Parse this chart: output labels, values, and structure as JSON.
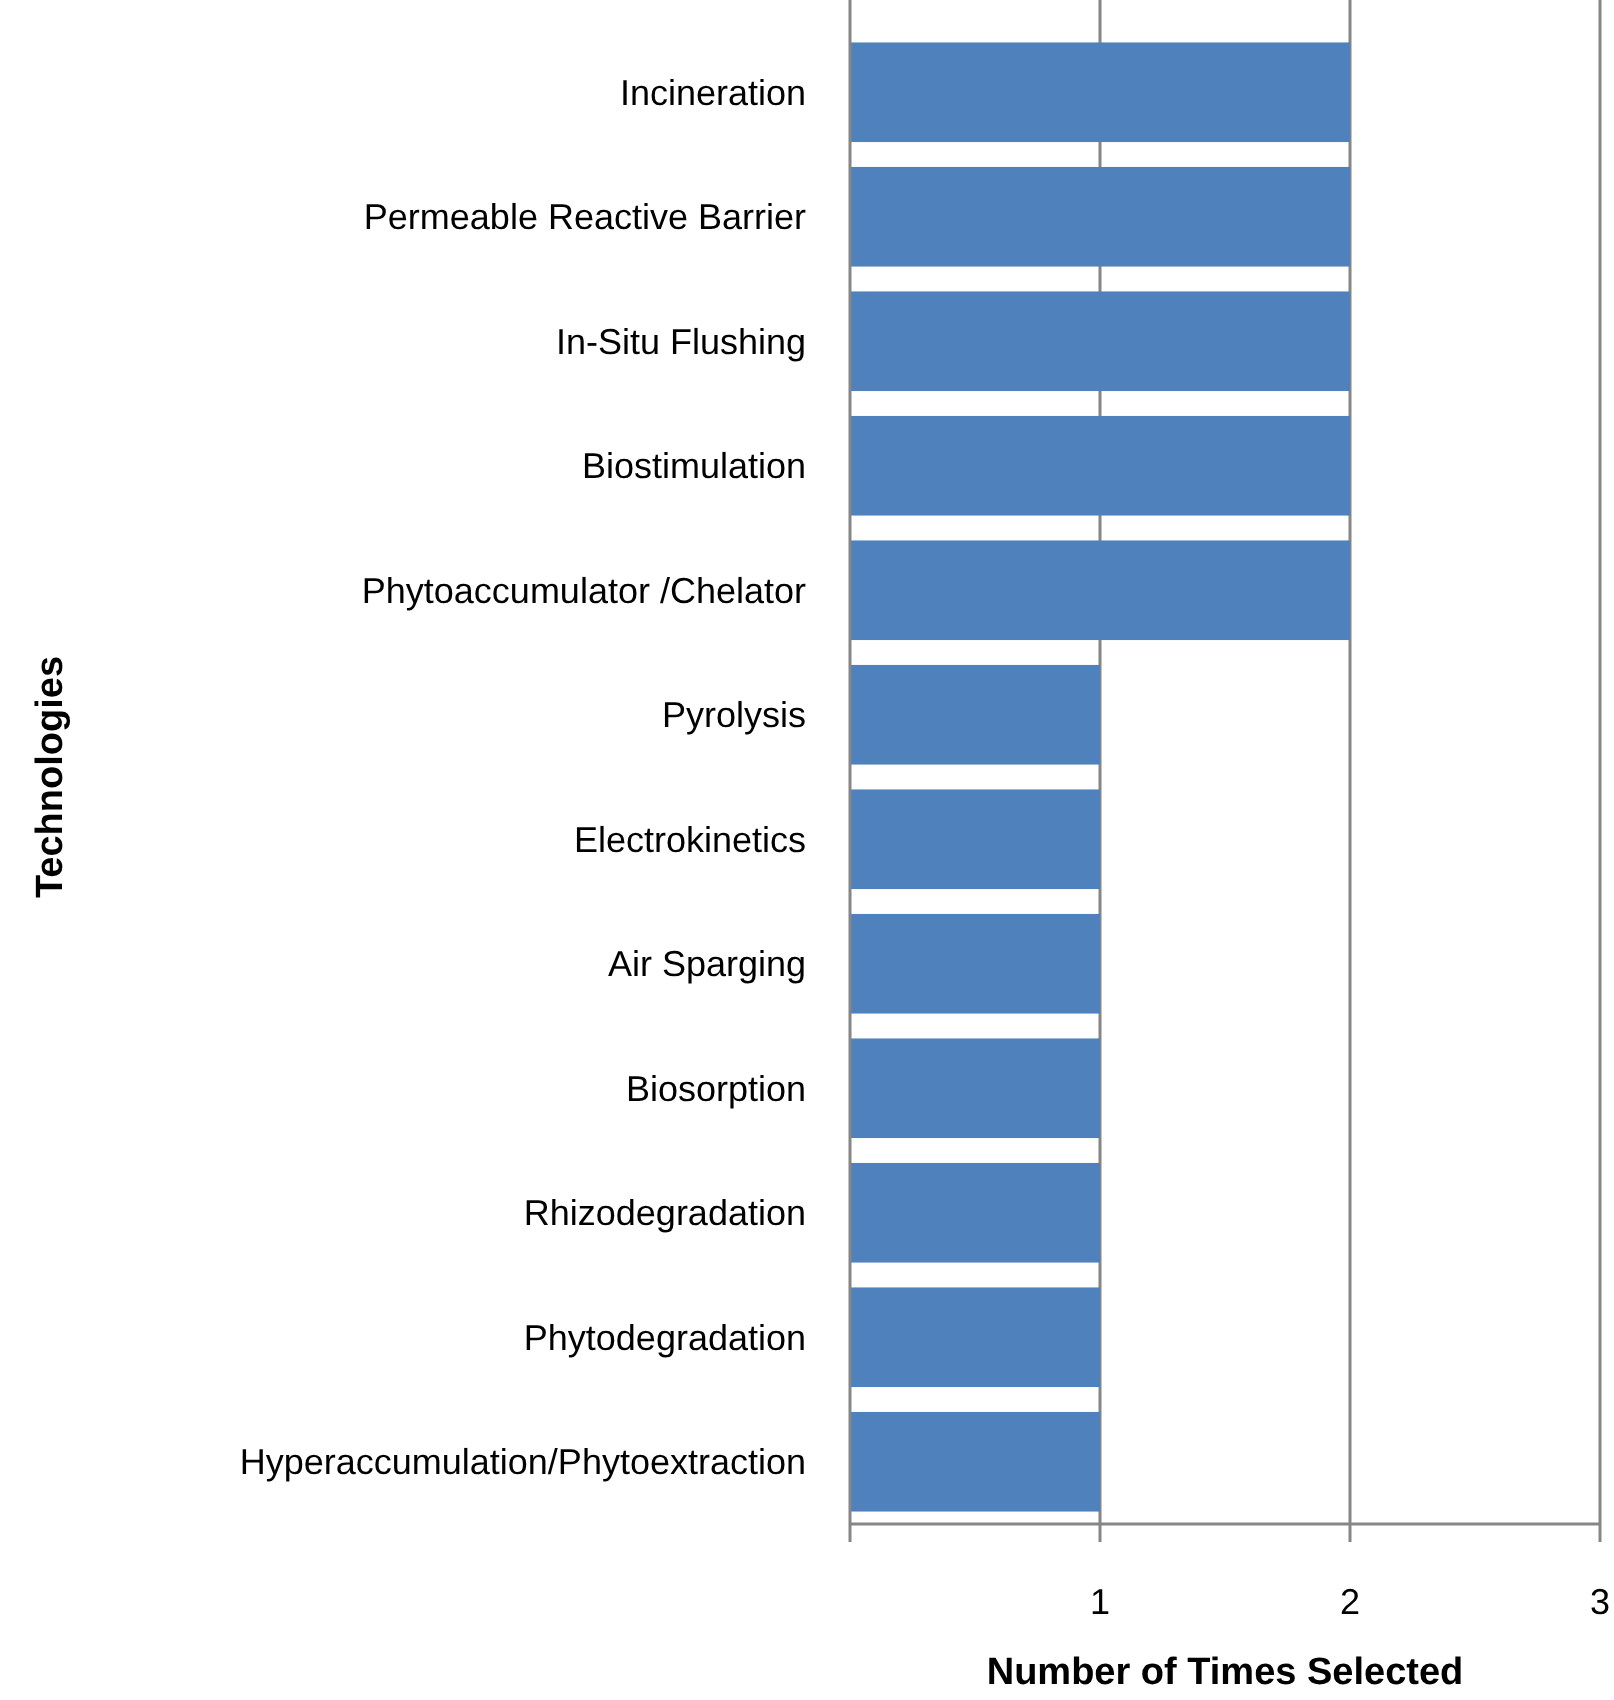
{
  "chart_data": {
    "type": "bar",
    "orientation": "horizontal",
    "xlabel": "Number of Times Selected",
    "ylabel": "Technologies",
    "categories": [
      "Incineration",
      "Permeable Reactive Barrier",
      "In-Situ Flushing",
      "Biostimulation",
      "Phytoaccumulator /Chelator",
      "Pyrolysis",
      "Electrokinetics",
      "Air Sparging",
      "Biosorption",
      "Rhizodegradation",
      "Phytodegradation",
      "Hyperaccumulation/Phytoextraction"
    ],
    "values": [
      2,
      2,
      2,
      2,
      2,
      1,
      1,
      1,
      1,
      1,
      1,
      1
    ],
    "color": "#4f81bd",
    "xlim": [
      0,
      3
    ],
    "xticks": [
      {
        "value": 0,
        "label": null
      },
      1,
      2,
      3
    ],
    "grid": "x"
  }
}
